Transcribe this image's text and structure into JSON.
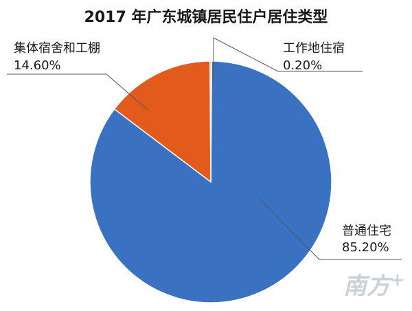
{
  "chart_data": {
    "type": "pie",
    "title": "2017 年广东城镇居民住户居住类型",
    "slices": [
      {
        "label": "普通住宅",
        "value": 85.2,
        "value_text": "85.20%",
        "color": "#3a72c1"
      },
      {
        "label": "集体宿舍和工棚",
        "value": 14.6,
        "value_text": "14.60%",
        "color": "#e25b1d"
      },
      {
        "label": "工作地住宿",
        "value": 0.2,
        "value_text": "0.20%",
        "color": "#9c9c9c"
      }
    ],
    "legend": "none"
  },
  "watermark": {
    "text": "南方+"
  }
}
